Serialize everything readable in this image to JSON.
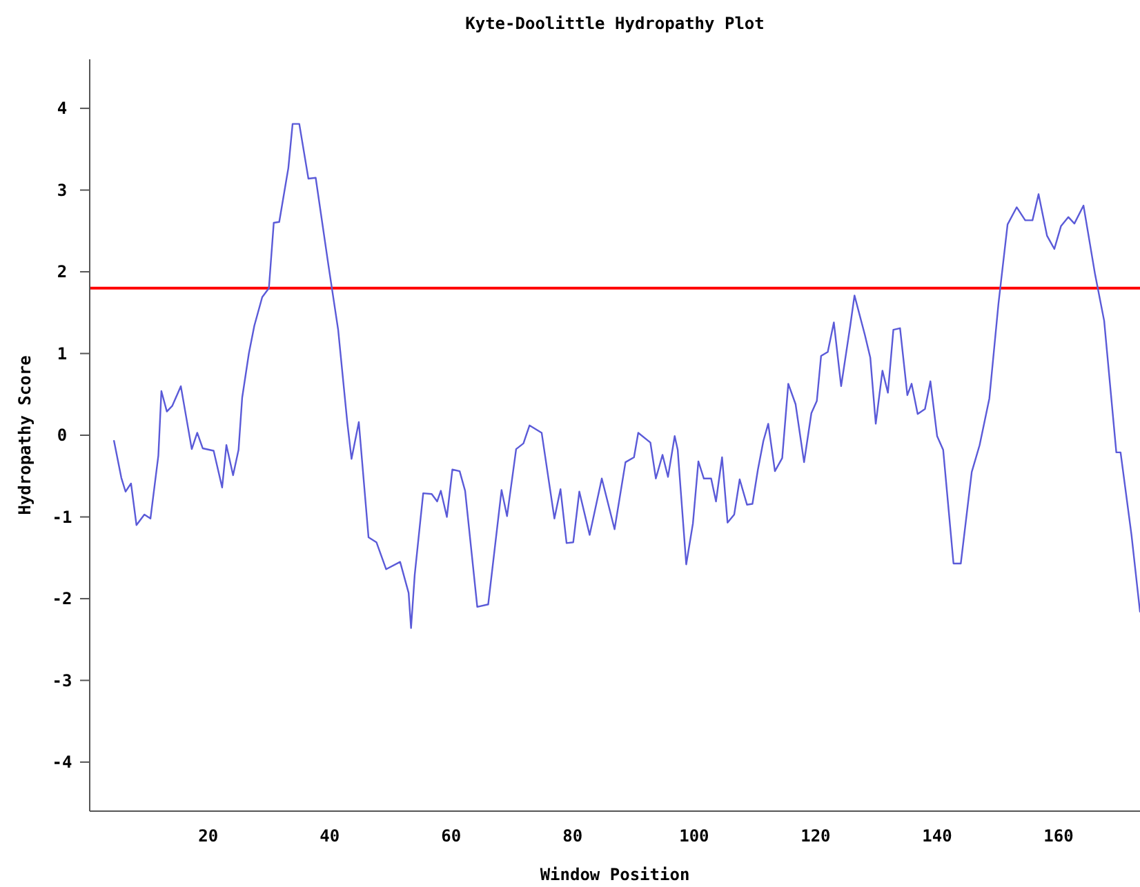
{
  "chart_data": {
    "type": "line",
    "title": "Kyte-Doolittle Hydropathy Plot",
    "xlabel": "Window Position",
    "ylabel": "Hydropathy Score",
    "xlim": [
      0.5,
      173.4
    ],
    "ylim": [
      -4.6,
      4.6
    ],
    "xticks": [
      20,
      40,
      60,
      80,
      100,
      120,
      140,
      160
    ],
    "yticks": [
      -4,
      -3,
      -2,
      -1,
      0,
      1,
      2,
      3,
      4
    ],
    "series": [
      {
        "color": "#5a5ad8",
        "x": [
          4.5,
          5.7,
          6.4,
          7.3,
          8.2,
          9.5,
          10.5,
          11.8,
          12.3,
          13.2,
          14.1,
          15.5,
          17.3,
          18.2,
          19.1,
          20.9,
          22.3,
          23.0,
          24.1,
          25.0,
          25.6,
          26.7,
          27.6,
          28.9,
          30.0,
          30.8,
          31.7,
          33.2,
          33.9,
          35.0,
          36.5,
          37.7,
          39.8,
          41.4,
          42.9,
          43.6,
          44.8,
          46.4,
          47.7,
          49.3,
          51.6,
          53.0,
          53.4,
          54.0,
          55.4,
          56.8,
          57.7,
          58.3,
          59.3,
          60.2,
          61.4,
          62.3,
          64.3,
          66.1,
          68.3,
          69.2,
          70.7,
          71.9,
          72.9,
          74.9,
          77.0,
          78.0,
          79.0,
          80.1,
          81.1,
          82.8,
          84.8,
          86.9,
          88.7,
          90.1,
          90.8,
          92.8,
          93.7,
          94.8,
          95.7,
          96.8,
          97.3,
          98.7,
          99.8,
          100.7,
          101.6,
          102.8,
          103.6,
          104.6,
          105.5,
          106.6,
          107.5,
          108.7,
          109.6,
          110.5,
          111.4,
          112.2,
          113.3,
          114.5,
          115.5,
          116.7,
          118.1,
          119.3,
          120.2,
          120.9,
          122.0,
          123.0,
          124.2,
          125.7,
          126.4,
          128.1,
          129.0,
          129.9,
          131.0,
          131.9,
          132.8,
          133.9,
          135.1,
          135.8,
          136.8,
          138.0,
          138.9,
          140.0,
          141.0,
          142.7,
          143.9,
          145.7,
          147.0,
          148.6,
          150.1,
          151.6,
          153.1,
          154.5,
          155.7,
          156.7,
          158.1,
          159.3,
          160.4,
          161.6,
          162.6,
          164.1,
          166.0,
          167.5,
          169.5,
          170.2,
          172.0,
          173.4
        ],
        "values": [
          -0.07,
          -0.52,
          -0.69,
          -0.59,
          -1.1,
          -0.97,
          -1.02,
          -0.25,
          0.54,
          0.29,
          0.36,
          0.6,
          -0.17,
          0.03,
          -0.16,
          -0.19,
          -0.64,
          -0.12,
          -0.49,
          -0.18,
          0.46,
          1.0,
          1.34,
          1.69,
          1.8,
          2.6,
          2.61,
          3.27,
          3.81,
          3.81,
          3.14,
          3.15,
          2.08,
          1.29,
          0.16,
          -0.29,
          0.16,
          -1.25,
          -1.31,
          -1.64,
          -1.55,
          -1.93,
          -2.36,
          -1.71,
          -0.71,
          -0.72,
          -0.81,
          -0.68,
          -1.0,
          -0.42,
          -0.44,
          -0.68,
          -2.1,
          -2.07,
          -0.67,
          -0.99,
          -0.17,
          -0.1,
          0.12,
          0.03,
          -1.02,
          -0.66,
          -1.32,
          -1.31,
          -0.69,
          -1.22,
          -0.53,
          -1.15,
          -0.33,
          -0.27,
          0.03,
          -0.09,
          -0.53,
          -0.24,
          -0.51,
          -0.01,
          -0.18,
          -1.58,
          -1.08,
          -0.32,
          -0.53,
          -0.53,
          -0.81,
          -0.27,
          -1.07,
          -0.97,
          -0.54,
          -0.85,
          -0.84,
          -0.42,
          -0.07,
          0.14,
          -0.44,
          -0.28,
          0.63,
          0.38,
          -0.33,
          0.27,
          0.42,
          0.97,
          1.02,
          1.38,
          0.6,
          1.34,
          1.71,
          1.23,
          0.95,
          0.14,
          0.79,
          0.52,
          1.29,
          1.31,
          0.49,
          0.63,
          0.26,
          0.32,
          0.66,
          -0.01,
          -0.18,
          -1.57,
          -1.57,
          -0.45,
          -0.12,
          0.45,
          1.61,
          2.58,
          2.79,
          2.63,
          2.63,
          2.95,
          2.44,
          2.28,
          2.56,
          2.67,
          2.59,
          2.81,
          1.97,
          1.4,
          -0.21,
          -0.21,
          -1.22,
          -2.16
        ]
      }
    ],
    "ref_lines": [
      {
        "axis": "y",
        "value": 1.8,
        "color": "#ff0000"
      }
    ]
  }
}
